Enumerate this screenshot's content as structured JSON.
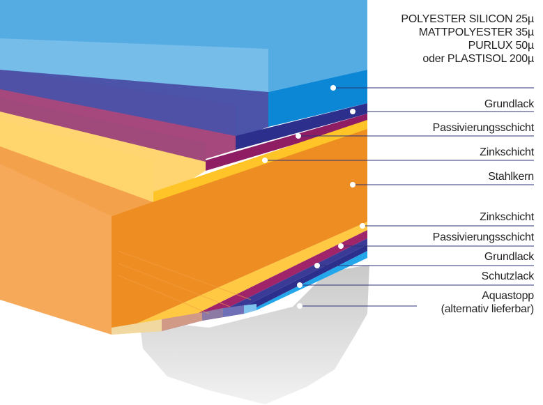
{
  "top_labels": {
    "line1": "POLYESTER SILICON 25µ",
    "line2": "MATTPOLYESTER 35µ",
    "line3": "PURLUX 50µ",
    "line4": "oder PLASTISOL 200µ"
  },
  "labels": {
    "grundlack_top": "Grundlack",
    "passiv_top": "Passivierungsschicht",
    "zink_top": "Zinkschicht",
    "stahlkern": "Stahlkern",
    "zink_bottom": "Zinkschicht",
    "passiv_bottom": "Passivierungsschicht",
    "grundlack_bottom": "Grundlack",
    "schutzlack": "Schutzlack",
    "aquastopp": "Aquastopp",
    "aquastopp_note": "(alternativ lieferbar)"
  },
  "colors": {
    "coating": "#4aa6df",
    "grundlack": "#3a3b97",
    "passivierung": "#9b2a72",
    "zink": "#ffc943",
    "stahlkern": "#ee8d22",
    "schutzlack": "#3a3b97",
    "aquastopp": "#2fa9e6",
    "leader": "#2b2f7a"
  }
}
